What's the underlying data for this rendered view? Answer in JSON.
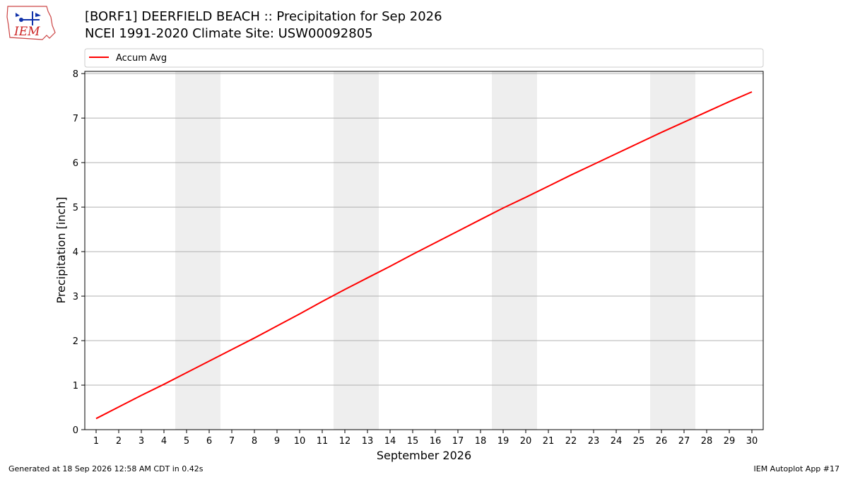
{
  "header": {
    "logo_text": "IEM",
    "title": "[BORF1] DEERFIELD BEACH :: Precipitation for Sep 2026",
    "subtitle": "NCEI 1991-2020 Climate Site: USW00092805"
  },
  "chart_data": {
    "type": "line",
    "xlabel": "September 2026",
    "ylabel": "Precipitation [inch]",
    "xlim": [
      0.5,
      30.5
    ],
    "ylim": [
      0,
      8.05
    ],
    "x_ticks": [
      1,
      2,
      3,
      4,
      5,
      6,
      7,
      8,
      9,
      10,
      11,
      12,
      13,
      14,
      15,
      16,
      17,
      18,
      19,
      20,
      21,
      22,
      23,
      24,
      25,
      26,
      27,
      28,
      29,
      30
    ],
    "y_ticks": [
      0,
      1,
      2,
      3,
      4,
      5,
      6,
      7,
      8
    ],
    "grid": "horizontal",
    "legend": "top, above plot",
    "weekend_bands": [
      [
        4.5,
        6.5
      ],
      [
        11.5,
        13.5
      ],
      [
        18.5,
        20.5
      ],
      [
        25.5,
        27.5
      ]
    ],
    "series": [
      {
        "name": "Accum Avg",
        "color": "#ff0000",
        "x": [
          1,
          2,
          3,
          4,
          5,
          6,
          7,
          8,
          9,
          10,
          11,
          12,
          13,
          14,
          15,
          16,
          17,
          18,
          19,
          20,
          21,
          22,
          23,
          24,
          25,
          26,
          27,
          28,
          29,
          30
        ],
        "y": [
          0.25,
          0.51,
          0.77,
          1.02,
          1.28,
          1.54,
          1.8,
          2.06,
          2.33,
          2.6,
          2.88,
          3.15,
          3.41,
          3.67,
          3.94,
          4.2,
          4.46,
          4.72,
          4.98,
          5.22,
          5.47,
          5.72,
          5.96,
          6.2,
          6.44,
          6.68,
          6.91,
          7.14,
          7.37,
          7.59
        ]
      }
    ]
  },
  "footer": {
    "generated": "Generated at 18 Sep 2026 12:58 AM CDT in 0.42s",
    "app": "IEM Autoplot App #17"
  }
}
